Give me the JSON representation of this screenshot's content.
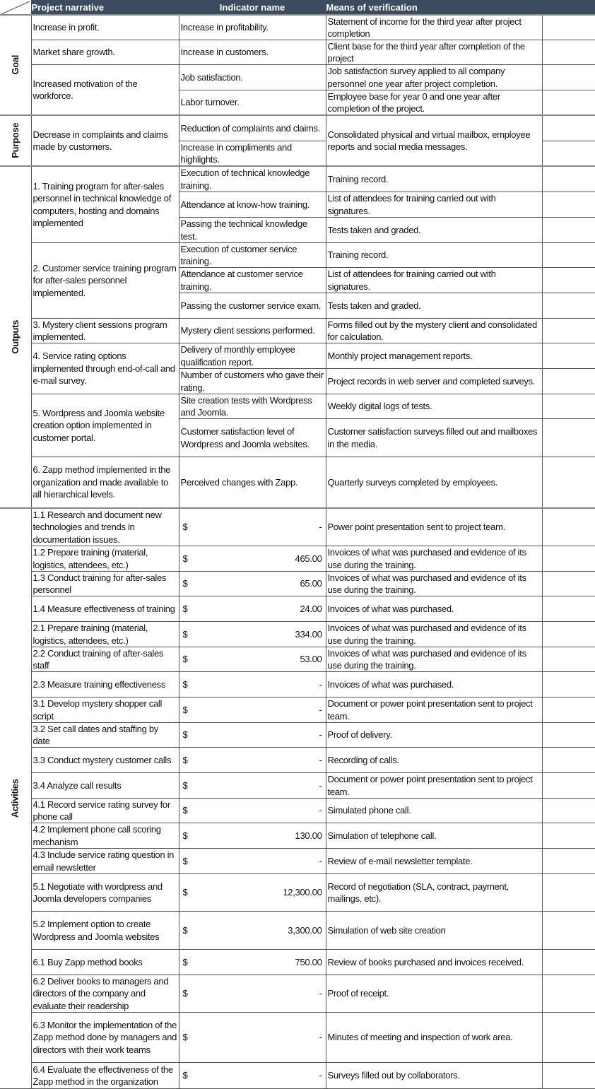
{
  "header": {
    "narrative": "Project narrative",
    "indicator": "Indicator name",
    "means": "Means of verification"
  },
  "colors": {
    "header_bg": "#3c4b5f",
    "header_text": "#ffffff"
  },
  "sections": [
    {
      "label": "Goal",
      "items": [
        {
          "narrative": "Increase in profit.",
          "indicators": [
            {
              "name": "Increase in profitability.",
              "means": "Statement of income for the third year after project completion"
            }
          ]
        },
        {
          "narrative": "Market share growth.",
          "indicators": [
            {
              "name": "Increase in customers.",
              "means": "Client base for the third year after completion of the project"
            }
          ]
        },
        {
          "narrative": "Increased motivation of the workforce.",
          "indicators": [
            {
              "name": "Job satisfaction.",
              "means": "Job satisfaction survey applied to all company personnel one year after project completion."
            },
            {
              "name": "Labor turnover.",
              "means": "Employee base for year 0 and one year after completion of the project."
            }
          ]
        }
      ]
    },
    {
      "label": "Purpose",
      "items": [
        {
          "narrative": "Decrease in complaints and claims made by customers.",
          "means": "Consolidated physical and virtual mailbox, employee reports and social media messages.",
          "indicators": [
            {
              "name": "Reduction of complaints and claims."
            },
            {
              "name": "Increase in compliments and highlights."
            }
          ]
        }
      ]
    },
    {
      "label": "Outputs",
      "items": [
        {
          "narrative": "1. Training program for after-sales personnel in technical knowledge of computers, hosting and domains implemented",
          "indicators": [
            {
              "name": "Execution of technical knowledge training.",
              "means": "Training record."
            },
            {
              "name": "Attendance at know-how training.",
              "means": "List of attendees for training carried out with signatures."
            },
            {
              "name": "Passing the technical knowledge test.",
              "means": "Tests taken and graded."
            }
          ]
        },
        {
          "narrative": "2. Customer service training program for after-sales personnel implemented.",
          "indicators": [
            {
              "name": "Execution of customer service training.",
              "means": "Training record."
            },
            {
              "name": "Attendance at customer service training.",
              "means": "List of attendees for training carried out with signatures."
            },
            {
              "name": "Passing the customer service exam.",
              "means": "Tests taken and graded."
            }
          ]
        },
        {
          "narrative": "3. Mystery client sessions program implemented.",
          "indicators": [
            {
              "name": "Mystery client sessions performed.",
              "means": "Forms filled out by the mystery client and consolidated for calculation."
            }
          ]
        },
        {
          "narrative": "4. Service rating options implemented through end-of-call and e-mail survey.",
          "indicators": [
            {
              "name": "Delivery of monthly employee qualification report.",
              "means": "Monthly project management reports."
            },
            {
              "name": "Number of customers who gave their rating.",
              "means": "Project records in web server and completed surveys."
            }
          ]
        },
        {
          "narrative": "5. Wordpress and Joomla website creation option implemented in customer portal.",
          "indicators": [
            {
              "name": "Site creation tests with Wordpress and Joomla.",
              "means": "Weekly digital logs of tests."
            },
            {
              "name": "Customer satisfaction level of Wordpress and Joomla websites.",
              "means": "Customer satisfaction surveys filled out and mailboxes in the media."
            }
          ]
        },
        {
          "narrative": "6. Zapp method implemented in the organization and made available to all hierarchical levels.",
          "indicators": [
            {
              "name": "Perceived changes with Zapp.",
              "means": "Quarterly surveys completed by employees."
            }
          ]
        }
      ]
    }
  ],
  "activities": {
    "label": "Activities",
    "currency": "$",
    "items": [
      {
        "narrative": "1.1 Research and document new technologies and trends in documentation issues.",
        "amount": "-",
        "means": "Power point presentation sent to project team."
      },
      {
        "narrative": "1.2 Prepare training (material, logistics, attendees, etc.)",
        "amount": "465.00",
        "means": "Invoices of what was purchased and evidence of its use during the training."
      },
      {
        "narrative": "1.3 Conduct training for after-sales personnel",
        "amount": "65.00",
        "means": "Invoices of what was purchased and evidence of its use during the training."
      },
      {
        "narrative": "1.4 Measure effectiveness of training",
        "amount": "24.00",
        "means": "Invoices of what was purchased."
      },
      {
        "narrative": "2.1 Prepare training (material, logistics, attendees, etc.)",
        "amount": "334.00",
        "means": "Invoices of what was purchased and evidence of its use during the training."
      },
      {
        "narrative": "2.2 Conduct training of after-sales staff",
        "amount": "53.00",
        "means": "Invoices of what was purchased and evidence of its use during the training."
      },
      {
        "narrative": "2.3 Measure training effectiveness",
        "amount": "-",
        "means": "Invoices of what was purchased."
      },
      {
        "narrative": "3.1 Develop mystery shopper call script",
        "amount": "-",
        "means": "Document or power point presentation sent to project team."
      },
      {
        "narrative": "3.2 Set call dates and staffing by date",
        "amount": "-",
        "means": "Proof of delivery."
      },
      {
        "narrative": "3.3 Conduct mystery customer calls",
        "amount": "-",
        "means": "Recording of calls."
      },
      {
        "narrative": "3.4 Analyze call results",
        "amount": "-",
        "means": "Document or power point presentation sent to project team."
      },
      {
        "narrative": "4.1 Record service rating survey for phone call",
        "amount": "-",
        "means": "Simulated phone call."
      },
      {
        "narrative": "4.2 Implement phone call scoring mechanism",
        "amount": "130.00",
        "means": "Simulation of telephone call."
      },
      {
        "narrative": "4.3 Include service rating question in email newsletter",
        "amount": "-",
        "means": "Review of e-mail newsletter template."
      },
      {
        "narrative": "5.1 Negotiate with wordpress and Joomla developers companies",
        "amount": "12,300.00",
        "means": "Record of negotiation (SLA, contract, payment, mailings, etc)."
      },
      {
        "narrative": "5.2 Implement option to create Wordpress and Joomla websites",
        "amount": "3,300.00",
        "means": "Simulation of web site creation"
      },
      {
        "narrative": "6.1 Buy Zapp method books",
        "amount": "750.00",
        "means": "Review of books purchased and invoices received."
      },
      {
        "narrative": "6.2 Deliver books to managers and directors of the company and evaluate their readership",
        "amount": "-",
        "means": "Proof of receipt."
      },
      {
        "narrative": "6.3 Monitor the implementation of the Zapp method done by managers and directors with their work teams",
        "amount": "-",
        "means": "Minutes of meeting and inspection of work area."
      },
      {
        "narrative": "6.4 Evaluate the effectiveness of the Zapp method in the organization",
        "amount": "-",
        "means": "Surveys filled out by collaborators."
      }
    ]
  }
}
